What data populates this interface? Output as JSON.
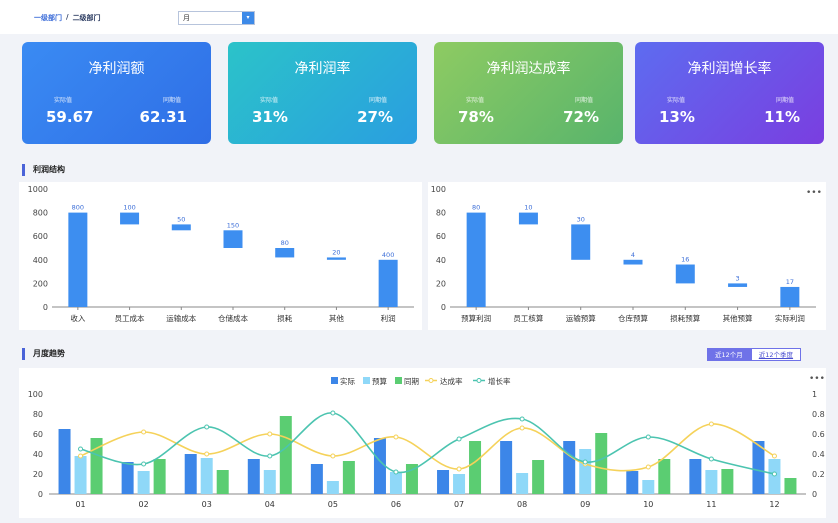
{
  "breadcrumb": {
    "level1": "一级部门",
    "sep": "/",
    "level2": "二级部门"
  },
  "period": {
    "value": "月",
    "arrow": "▾"
  },
  "kpis": [
    {
      "title": "净利润额",
      "actual_label": "实际值",
      "prior_label": "同期值",
      "actual": "59.67",
      "prior": "62.31",
      "colors": [
        "#3a8bf3",
        "#2f6ee6"
      ]
    },
    {
      "title": "净利润率",
      "actual_label": "实际值",
      "prior_label": "同期值",
      "actual": "31%",
      "prior": "27%",
      "colors": [
        "#2bc3c9",
        "#2a9ee0"
      ]
    },
    {
      "title": "净利润达成率",
      "actual_label": "实际值",
      "prior_label": "同期值",
      "actual": "78%",
      "prior": "72%",
      "colors": [
        "#8ecb62",
        "#58b46c"
      ]
    },
    {
      "title": "净利润增长率",
      "actual_label": "实际值",
      "prior_label": "同期值",
      "actual": "13%",
      "prior": "11%",
      "colors": [
        "#5d6cf0",
        "#7a3ee0"
      ]
    }
  ],
  "sections": {
    "structure": "利润结构",
    "trend": "月度趋势"
  },
  "more": "•••",
  "trend_buttons": {
    "active": "近12个月",
    "inactive": "近12个季度"
  },
  "chart_data": [
    {
      "type": "bar",
      "subtype": "waterfall",
      "categories": [
        "收入",
        "员工成本",
        "运输成本",
        "仓储成本",
        "损耗",
        "其他",
        "利润"
      ],
      "values": [
        800,
        100,
        50,
        150,
        80,
        20,
        400
      ],
      "ranges": [
        [
          0,
          800
        ],
        [
          700,
          800
        ],
        [
          650,
          700
        ],
        [
          500,
          650
        ],
        [
          420,
          500
        ],
        [
          400,
          420
        ],
        [
          0,
          400
        ]
      ],
      "ylim": [
        0,
        1000
      ],
      "yticks": [
        0,
        200,
        400,
        600,
        800,
        1000
      ]
    },
    {
      "type": "bar",
      "subtype": "waterfall",
      "categories": [
        "预算利润",
        "员工核算",
        "运输预算",
        "仓库预算",
        "损耗预算",
        "其他预算",
        "实际利润"
      ],
      "values": [
        80,
        10,
        30,
        4,
        16,
        3,
        17
      ],
      "ranges": [
        [
          0,
          80
        ],
        [
          70,
          80
        ],
        [
          40,
          70
        ],
        [
          36,
          40
        ],
        [
          20,
          36
        ],
        [
          17,
          20
        ],
        [
          0,
          17
        ]
      ],
      "ylim": [
        0,
        100
      ],
      "yticks": [
        0,
        20,
        40,
        60,
        80,
        100
      ]
    },
    {
      "type": "bar+line",
      "categories": [
        "01",
        "02",
        "03",
        "04",
        "05",
        "06",
        "07",
        "08",
        "09",
        "10",
        "11",
        "12"
      ],
      "legend": [
        "实际",
        "预算",
        "同期",
        "达成率",
        "增长率"
      ],
      "colors": [
        "#3c86e8",
        "#8fd8f8",
        "#5bcd72",
        "#f5d25a",
        "#4cc4b0"
      ],
      "series": [
        {
          "name": "实际",
          "axis": "left",
          "values": [
            65,
            32,
            40,
            35,
            30,
            56,
            24,
            53,
            53,
            23,
            35,
            53
          ]
        },
        {
          "name": "预算",
          "axis": "left",
          "values": [
            38,
            23,
            36,
            24,
            13,
            22,
            20,
            21,
            45,
            14,
            24,
            35
          ]
        },
        {
          "name": "同期",
          "axis": "left",
          "values": [
            56,
            35,
            24,
            78,
            33,
            30,
            53,
            34,
            61,
            35,
            25,
            16
          ]
        },
        {
          "name": "达成率",
          "axis": "right",
          "values": [
            0.38,
            0.62,
            0.4,
            0.6,
            0.38,
            0.57,
            0.25,
            0.66,
            0.3,
            0.27,
            0.7,
            0.38
          ]
        },
        {
          "name": "增长率",
          "axis": "right",
          "values": [
            0.45,
            0.3,
            0.67,
            0.38,
            0.81,
            0.22,
            0.55,
            0.75,
            0.32,
            0.57,
            0.35,
            0.2
          ]
        }
      ],
      "ylim_left": [
        0,
        100
      ],
      "yticks_left": [
        0,
        20,
        40,
        60,
        80,
        100
      ],
      "ylim_right": [
        0,
        1
      ],
      "yticks_right": [
        0,
        0.2,
        0.4,
        0.6,
        0.8,
        1
      ]
    }
  ]
}
